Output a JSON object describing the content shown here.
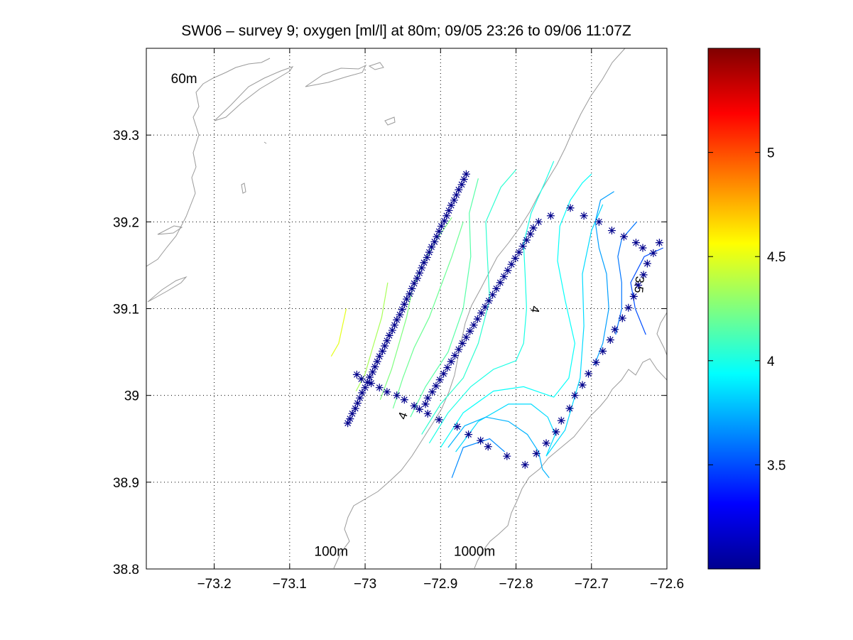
{
  "chart_data": {
    "type": "scatter",
    "title": "SW06 – survey 9; oxygen [ml/l] at 80m; 09/05 23:26 to 09/06 11:07Z",
    "xlabel": "",
    "ylabel": "",
    "xlim": [
      -73.29,
      -72.6
    ],
    "ylim": [
      38.8,
      39.4
    ],
    "xticks": [
      -73.2,
      -73.1,
      -73.0,
      -72.9,
      -72.8,
      -72.7,
      -72.6
    ],
    "xtick_labels": [
      "−73.2",
      "−73.1",
      "−73",
      "−72.9",
      "−72.8",
      "−72.7",
      "−72.6"
    ],
    "yticks": [
      38.8,
      38.9,
      39.0,
      39.1,
      39.2,
      39.3
    ],
    "ytick_labels": [
      "38.8",
      "38.9",
      "39",
      "39.1",
      "39.2",
      "39.3"
    ],
    "grid": true,
    "colorbar": {
      "colormap": "jet",
      "range": [
        3.0,
        5.5
      ],
      "ticks": [
        3.5,
        4,
        4.5,
        5
      ],
      "tick_labels": [
        "3.5",
        "4",
        "4.5",
        "5"
      ]
    },
    "bathymetry_labels": [
      {
        "text": "60m",
        "x": -73.24,
        "y": 39.36
      },
      {
        "text": "100m",
        "x": -73.045,
        "y": 38.815
      },
      {
        "text": "1000m",
        "x": -72.855,
        "y": 38.815
      }
    ],
    "contour_labels": [
      {
        "text": "4",
        "x": -72.945,
        "y": 38.975,
        "rot": -70
      },
      {
        "text": "4",
        "x": -72.78,
        "y": 39.1,
        "rot": 100
      },
      {
        "text": "3.5",
        "x": -72.642,
        "y": 39.128,
        "rot": 95
      }
    ],
    "stations": {
      "marker": "*",
      "color": "#00008b",
      "x": [
        -72.866,
        -72.869,
        -72.872,
        -72.876,
        -72.879,
        -72.882,
        -72.886,
        -72.889,
        -72.892,
        -72.895,
        -72.899,
        -72.902,
        -72.905,
        -72.908,
        -72.912,
        -72.915,
        -72.918,
        -72.922,
        -72.925,
        -72.928,
        -72.931,
        -72.935,
        -72.938,
        -72.941,
        -72.945,
        -72.948,
        -72.951,
        -72.954,
        -72.958,
        -72.961,
        -72.964,
        -72.968,
        -72.971,
        -72.974,
        -72.977,
        -72.981,
        -72.984,
        -72.987,
        -72.99,
        -72.994,
        -72.997,
        -73.0,
        -73.004,
        -73.007,
        -73.01,
        -73.013,
        -73.017,
        -73.02,
        -73.023,
        -73.011,
        -73.005,
        -72.992,
        -72.981,
        -72.971,
        -72.958,
        -72.948,
        -72.935,
        -72.928,
        -72.917,
        -72.902,
        -72.878,
        -72.863,
        -72.847,
        -72.837,
        -72.812,
        -72.788,
        -72.773,
        -72.76,
        -72.747,
        -72.74,
        -72.729,
        -72.722,
        -72.712,
        -72.704,
        -72.694,
        -72.685,
        -72.675,
        -72.669,
        -72.659,
        -72.651,
        -72.644,
        -72.638,
        -72.631,
        -72.626,
        -72.618,
        -72.61,
        -72.632,
        -72.641,
        -72.657,
        -72.673,
        -72.69,
        -72.71,
        -72.728,
        -72.754,
        -72.77,
        -72.777,
        -72.781,
        -72.786,
        -72.791,
        -72.796,
        -72.801,
        -72.806,
        -72.811,
        -72.816,
        -72.821,
        -72.826,
        -72.831,
        -72.836,
        -72.841,
        -72.846,
        -72.851,
        -72.856,
        -72.861,
        -72.866,
        -72.871,
        -72.876,
        -72.881,
        -72.886,
        -72.891,
        -72.896,
        -72.901,
        -72.906,
        -72.911,
        -72.917,
        -72.92
      ],
      "y": [
        39.255,
        39.249,
        39.243,
        39.237,
        39.231,
        39.225,
        39.219,
        39.213,
        39.207,
        39.201,
        39.195,
        39.189,
        39.183,
        39.177,
        39.171,
        39.165,
        39.159,
        39.153,
        39.147,
        39.141,
        39.135,
        39.129,
        39.123,
        39.117,
        39.111,
        39.105,
        39.099,
        39.093,
        39.087,
        39.081,
        39.075,
        39.069,
        39.063,
        39.057,
        39.051,
        39.045,
        39.039,
        39.033,
        39.027,
        39.021,
        39.015,
        39.009,
        39.003,
        38.997,
        38.991,
        38.985,
        38.979,
        38.973,
        38.968,
        39.024,
        39.019,
        39.014,
        39.009,
        39.004,
        39.0,
        38.995,
        38.988,
        38.984,
        38.979,
        38.972,
        38.964,
        38.955,
        38.948,
        38.941,
        38.93,
        38.92,
        38.933,
        38.945,
        38.958,
        38.971,
        38.985,
        39.0,
        39.012,
        39.025,
        39.038,
        39.051,
        39.064,
        39.076,
        39.089,
        39.101,
        39.114,
        39.127,
        39.139,
        39.152,
        39.164,
        39.176,
        39.17,
        39.176,
        39.183,
        39.19,
        39.2,
        39.207,
        39.216,
        39.207,
        39.2,
        39.193,
        39.186,
        39.179,
        39.172,
        39.165,
        39.158,
        39.151,
        39.144,
        39.137,
        39.13,
        39.123,
        39.116,
        39.109,
        39.102,
        39.095,
        39.088,
        39.081,
        39.074,
        39.067,
        39.06,
        39.053,
        39.046,
        39.039,
        39.032,
        39.025,
        39.018,
        39.011,
        39.004,
        38.997,
        38.99
      ]
    },
    "oxygen_contours": [
      {
        "level": 4.5,
        "x": [
          -73.045,
          -73.035,
          -73.03,
          -73.025
        ],
        "y": [
          39.045,
          39.06,
          39.08,
          39.1
        ]
      },
      {
        "level": 4.35,
        "x": [
          -73.012,
          -73.0,
          -72.99,
          -72.978,
          -72.97
        ],
        "y": [
          39.005,
          39.025,
          39.055,
          39.09,
          39.13
        ]
      },
      {
        "level": 4.25,
        "x": [
          -72.98,
          -72.965,
          -72.955,
          -72.945,
          -72.938,
          -72.925,
          -72.905,
          -72.885
        ],
        "y": [
          38.995,
          39.03,
          39.06,
          39.09,
          39.12,
          39.15,
          39.18,
          39.205
        ]
      },
      {
        "level": 4.2,
        "x": [
          -72.963,
          -72.95,
          -72.935,
          -72.915,
          -72.9,
          -72.885,
          -72.87
        ],
        "y": [
          38.985,
          39.02,
          39.055,
          39.09,
          39.125,
          39.16,
          39.2
        ]
      },
      {
        "level": 4.15,
        "x": [
          -72.94,
          -72.92,
          -72.89,
          -72.87,
          -72.86,
          -72.862,
          -72.85
        ],
        "y": [
          38.975,
          39.01,
          39.05,
          39.1,
          39.16,
          39.21,
          39.25
        ]
      },
      {
        "level": 4.05,
        "x": [
          -72.925,
          -72.9,
          -72.87,
          -72.85,
          -72.835,
          -72.838,
          -72.84,
          -72.82,
          -72.8
        ],
        "y": [
          38.955,
          38.99,
          39.02,
          39.06,
          39.11,
          39.16,
          39.2,
          39.24,
          39.26
        ]
      },
      {
        "level": 4.0,
        "x": [
          -72.915,
          -72.89,
          -72.86,
          -72.83,
          -72.8,
          -72.79,
          -72.786,
          -72.788,
          -72.79,
          -72.78,
          -72.762,
          -72.75
        ],
        "y": [
          38.945,
          38.98,
          39.01,
          39.03,
          39.04,
          39.06,
          39.1,
          39.14,
          39.175,
          39.21,
          39.245,
          39.27
        ]
      },
      {
        "level": 3.95,
        "x": [
          -72.9,
          -72.87,
          -72.83,
          -72.79,
          -72.75,
          -72.73,
          -72.722,
          -72.735,
          -72.745,
          -72.742,
          -72.728,
          -72.712,
          -72.7
        ],
        "y": [
          38.94,
          38.98,
          39.005,
          39.01,
          38.998,
          39.02,
          39.06,
          39.11,
          39.155,
          39.195,
          39.225,
          39.245,
          39.255
        ]
      },
      {
        "level": 3.85,
        "x": [
          -72.88,
          -72.85,
          -72.81,
          -72.78,
          -72.758,
          -72.748,
          -72.76,
          -72.735,
          -72.715,
          -72.71,
          -72.712,
          -72.7,
          -72.685
        ],
        "y": [
          38.935,
          38.97,
          38.99,
          38.99,
          38.975,
          38.955,
          38.93,
          38.96,
          39.02,
          39.08,
          39.14,
          39.19,
          39.22
        ]
      },
      {
        "level": 3.75,
        "x": [
          -72.89,
          -72.868,
          -72.84,
          -72.81,
          -72.785,
          -72.77,
          -72.765,
          -72.756
        ],
        "y": [
          38.94,
          38.965,
          38.975,
          38.97,
          38.955,
          38.935,
          38.915,
          38.905
        ]
      },
      {
        "level": 3.65,
        "x": [
          -72.885,
          -72.87,
          -72.835,
          -72.815
        ],
        "y": [
          38.905,
          38.94,
          38.95,
          38.935
        ]
      },
      {
        "level": 3.7,
        "x": [
          -72.696,
          -72.685,
          -72.677,
          -72.68,
          -72.69,
          -72.695,
          -72.688,
          -72.67
        ],
        "y": [
          39.035,
          39.06,
          39.1,
          39.14,
          39.17,
          39.2,
          39.225,
          39.235
        ]
      },
      {
        "level": 3.6,
        "x": [
          -72.668,
          -72.66,
          -72.66,
          -72.665,
          -72.66,
          -72.64
        ],
        "y": [
          39.07,
          39.1,
          39.13,
          39.16,
          39.18,
          39.2
        ]
      },
      {
        "level": 3.5,
        "x": [
          -72.628,
          -72.642,
          -72.648,
          -72.63,
          -72.605
        ],
        "y": [
          39.07,
          39.1,
          39.13,
          39.16,
          39.17
        ]
      }
    ]
  }
}
